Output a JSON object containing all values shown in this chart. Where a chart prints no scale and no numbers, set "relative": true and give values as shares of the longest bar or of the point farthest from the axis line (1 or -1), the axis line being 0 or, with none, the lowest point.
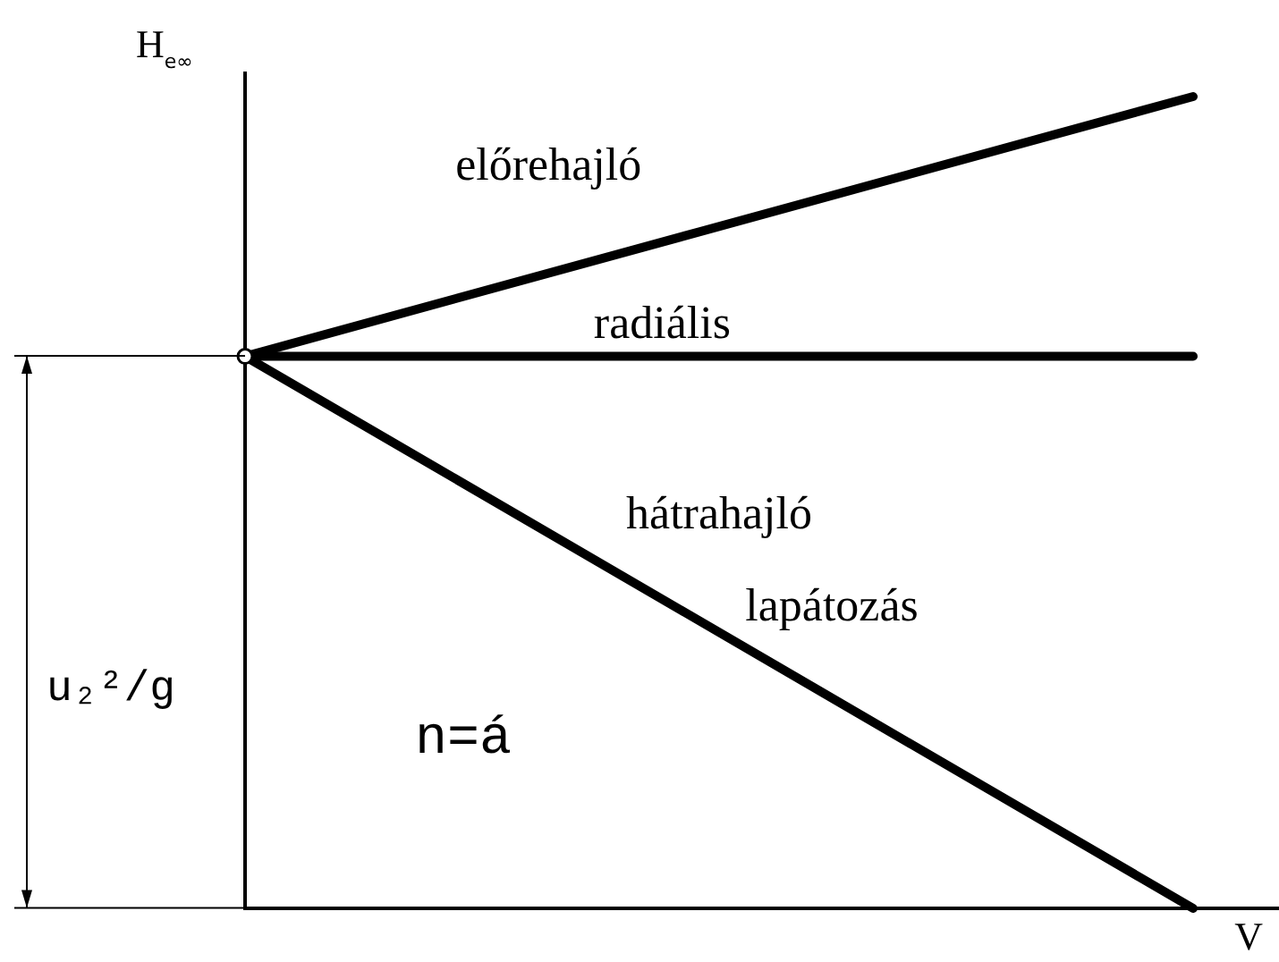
{
  "chart_data": {
    "type": "line",
    "ylabel": "H$_{e∞}$",
    "xlabel": "V",
    "categories": [
      null,
      null
    ],
    "relative": true,
    "tick_labels": false,
    "line_style": "solid",
    "series": [
      {
        "name": "előrehajló",
        "color": "#000000",
        "values": [
          0.68,
          1
        ]
      },
      {
        "name": "radiális",
        "color": "#000000",
        "values": [
          0.68,
          0.68
        ]
      },
      {
        "name": "hátrahajló",
        "color": "#000000",
        "values": [
          0.68,
          0
        ]
      },
      {
        "color": "#000000",
        "values": [
          0.68,
          null
        ],
        "marker": "circle"
      }
    ],
    "annotations": [
      "lapátozás",
      "n=á",
      "u₂²/g"
    ]
  }
}
